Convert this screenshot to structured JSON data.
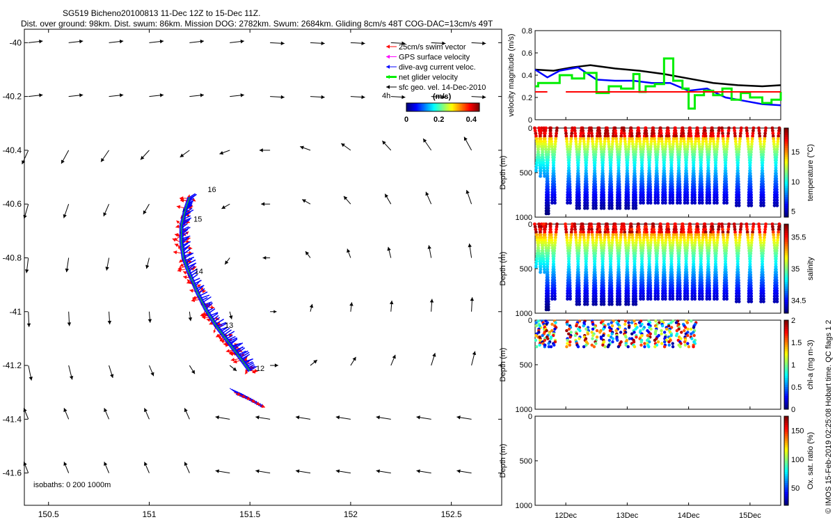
{
  "title_line1": "SG519 Bicheno20100813 11-Dec 12Z to 15-Dec 11Z.",
  "title_line2": "Dist. over ground: 98km. Dist. swum: 86km. Mission DOG: 2782km. Swum: 2684km. Gliding 8cm/s 48T COG-DAC=13cm/s 49T",
  "side_credit": "© IMOS 15-Feb-2019 02:25:08 Hobart time. QC flags 1  2",
  "colors": {
    "swim": "#ff0000",
    "gps": "#ff00ff",
    "dac": "#0000ff",
    "net": "#00ee00",
    "geo": "#000000",
    "mag_black": "#000000"
  },
  "chart_data": [
    {
      "id": "map",
      "type": "scatter",
      "xlim": [
        150.38,
        152.75
      ],
      "ylim": [
        -41.72,
        -39.95
      ],
      "x_ticks": [
        "150.5",
        "151",
        "151.5",
        "152",
        "152.5"
      ],
      "y_ticks": [
        "-40",
        "-40.2",
        "-40.4",
        "-40.6",
        "-40.8",
        "-41",
        "-41.2",
        "-41.4",
        "-41.6"
      ],
      "legend": {
        "placement": "top-right",
        "items": [
          "25cm/s swim vector",
          "GPS surface velocity",
          "dive-avg current veloc.",
          "net glider velocity",
          "sfc geo. vel. 14-Dec-2010"
        ]
      },
      "time_label": "4h",
      "colorbar": {
        "label": "(m/s)",
        "ticks": [
          "0",
          "0.2",
          "0.4"
        ],
        "range": [
          0,
          0.45
        ]
      },
      "day_labels": [
        {
          "text": "16",
          "lon": 151.29,
          "lat": -40.555
        },
        {
          "text": "15",
          "lon": 151.22,
          "lat": -40.665
        },
        {
          "text": "14",
          "lon": 151.225,
          "lat": -40.86
        },
        {
          "text": "13",
          "lon": 151.375,
          "lat": -41.06
        },
        {
          "text": "12",
          "lon": 151.53,
          "lat": -41.22
        }
      ],
      "track": [
        [
          151.2,
          -40.575
        ],
        [
          151.18,
          -40.62
        ],
        [
          151.16,
          -40.68
        ],
        [
          151.16,
          -40.74
        ],
        [
          151.17,
          -40.8
        ],
        [
          151.2,
          -40.86
        ],
        [
          151.24,
          -40.93
        ],
        [
          151.28,
          -40.99
        ],
        [
          151.33,
          -41.05
        ],
        [
          151.38,
          -41.1
        ],
        [
          151.42,
          -41.14
        ],
        [
          151.46,
          -41.18
        ],
        [
          151.5,
          -41.22
        ]
      ],
      "track2": [
        [
          151.4,
          -41.285
        ],
        [
          151.46,
          -41.305
        ],
        [
          151.52,
          -41.33
        ]
      ],
      "isobath_note": "isobaths: 0   200   1000m"
    },
    {
      "id": "velocity",
      "type": "line",
      "ylabel": "velocity magnitude (m/s)",
      "ylim": [
        0,
        0.8
      ],
      "y_ticks": [
        "0",
        "0.2",
        "0.4",
        "0.6",
        "0.8"
      ],
      "xlim": [
        11.5,
        15.5
      ],
      "series": [
        {
          "style": "black",
          "x": [
            11.5,
            11.8,
            12.1,
            12.4,
            12.8,
            13.2,
            13.6,
            14.0,
            14.4,
            14.8,
            15.2,
            15.5
          ],
          "values": [
            0.45,
            0.44,
            0.47,
            0.49,
            0.46,
            0.44,
            0.41,
            0.37,
            0.33,
            0.31,
            0.3,
            0.31
          ]
        },
        {
          "style": "blue",
          "x": [
            11.5,
            11.7,
            11.9,
            12.2,
            12.5,
            12.8,
            13.1,
            13.4,
            13.7,
            14.0,
            14.3,
            14.6,
            14.9,
            15.2,
            15.5
          ],
          "values": [
            0.45,
            0.38,
            0.44,
            0.47,
            0.36,
            0.35,
            0.35,
            0.33,
            0.33,
            0.26,
            0.28,
            0.2,
            0.17,
            0.14,
            0.13
          ]
        },
        {
          "style": "green",
          "x": [
            11.5,
            11.55,
            11.7,
            11.9,
            12.1,
            12.3,
            12.5,
            12.7,
            12.9,
            13.1,
            13.2,
            13.3,
            13.45,
            13.6,
            13.75,
            13.9,
            14.0,
            14.1,
            14.25,
            14.4,
            14.55,
            14.7,
            14.85,
            15.0,
            15.2,
            15.35,
            15.5
          ],
          "values": [
            0.3,
            0.33,
            0.33,
            0.4,
            0.37,
            0.42,
            0.24,
            0.3,
            0.28,
            0.41,
            0.25,
            0.3,
            0.32,
            0.55,
            0.35,
            0.28,
            0.1,
            0.22,
            0.26,
            0.22,
            0.28,
            0.18,
            0.24,
            0.2,
            0.15,
            0.18,
            0.25
          ]
        },
        {
          "style": "red",
          "x": [
            11.5,
            11.7,
            12.0,
            15.5
          ],
          "values": [
            0.25,
            0.25,
            0.25,
            0.25
          ]
        }
      ]
    },
    {
      "id": "temperature",
      "type": "scatter",
      "ylabel": "Depth (m)",
      "ylim": [
        1000,
        0
      ],
      "y_ticks": [
        "0",
        "500",
        "1000"
      ],
      "colorbar": {
        "label": "temperature (°C)",
        "ticks": [
          "5",
          "10",
          "15"
        ],
        "range": [
          4,
          19
        ]
      },
      "dive_times": [
        11.55,
        11.62,
        11.7,
        11.8,
        12.05,
        12.2,
        12.33,
        12.47,
        12.6,
        12.73,
        12.86,
        13.0,
        13.12,
        13.24,
        13.36,
        13.48,
        13.6,
        13.72,
        13.84,
        13.96,
        14.08,
        14.2,
        14.32,
        14.44,
        14.6,
        14.8,
        15.0,
        15.2,
        15.42
      ],
      "dive_depth": [
        500,
        550,
        980,
        850,
        850,
        900,
        900,
        900,
        900,
        900,
        900,
        900,
        900,
        850,
        850,
        850,
        850,
        850,
        850,
        850,
        850,
        850,
        850,
        850,
        850,
        880,
        880,
        880,
        880
      ]
    },
    {
      "id": "salinity",
      "type": "scatter",
      "ylabel": "Depth (m)",
      "ylim": [
        1000,
        0
      ],
      "y_ticks": [
        "0",
        "500",
        "1000"
      ],
      "colorbar": {
        "label": "salinity",
        "ticks": [
          "34.5",
          "35",
          "35.5"
        ],
        "range": [
          34.3,
          35.7
        ]
      }
    },
    {
      "id": "chla",
      "type": "scatter",
      "ylabel": "Depth (m)",
      "ylim": [
        1000,
        0
      ],
      "y_ticks": [
        "0",
        "500",
        "1000"
      ],
      "colorbar": {
        "label": "chl-a (mg m-3)",
        "ticks": [
          "0",
          "0.5",
          "1",
          "1.5",
          "2"
        ],
        "range": [
          0,
          2
        ]
      },
      "dive_times": [
        11.55,
        11.62,
        11.7,
        11.8,
        12.05,
        12.2,
        12.33,
        12.47,
        12.6,
        12.73,
        12.86,
        13.0,
        13.12,
        13.24,
        13.36,
        13.48,
        13.6,
        13.72,
        13.84,
        13.96,
        14.08
      ]
    },
    {
      "id": "oxygen",
      "type": "scatter",
      "ylabel": "Depth (m)",
      "ylim": [
        1000,
        0
      ],
      "y_ticks": [
        "0",
        "500",
        "1000"
      ],
      "x_ticks": [
        "12Dec",
        "13Dec",
        "14Dec",
        "15Dec"
      ],
      "colorbar": {
        "label": "Ox. sat. ratio (%)",
        "ticks": [
          "50",
          "100",
          "150"
        ],
        "range": [
          20,
          175
        ]
      }
    }
  ]
}
